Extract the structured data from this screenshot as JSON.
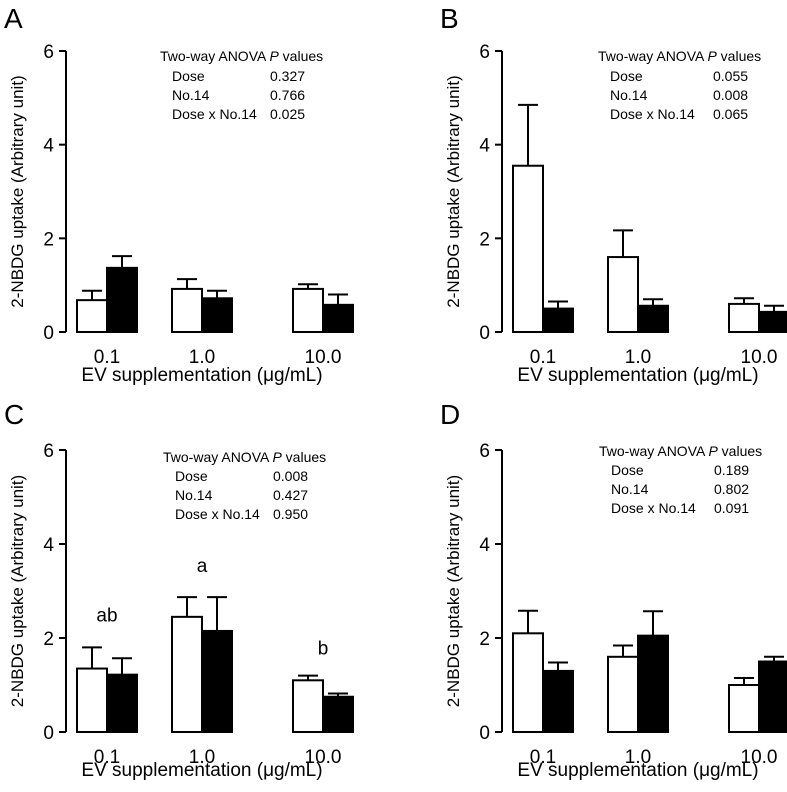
{
  "chart_data": [
    {
      "panel_label": "A",
      "type": "bar",
      "categories": [
        "0.1",
        "1.0",
        "10.0"
      ],
      "series": [
        {
          "name": "open",
          "fill": "#ffffff",
          "values": [
            0.68,
            0.92,
            0.92
          ],
          "errors": [
            0.2,
            0.21,
            0.1
          ]
        },
        {
          "name": "filled",
          "fill": "#000000",
          "values": [
            1.37,
            0.72,
            0.58
          ],
          "errors": [
            0.25,
            0.16,
            0.22
          ]
        }
      ],
      "ylim": [
        0,
        6
      ],
      "yticks": [
        0,
        2,
        4,
        6
      ],
      "ylabel": "2-NBDG uptake (Arbitrary unit)",
      "xlabel": "EV supplementation (μg/mL)",
      "anova": {
        "title": "Two-way ANOVA",
        "title_italic": "P",
        "title_suffix": "values",
        "rows": [
          {
            "label": "Dose",
            "value": "0.327"
          },
          {
            "label": "No.14",
            "value": "0.766"
          },
          {
            "label": "Dose x No.14",
            "value": "0.025"
          }
        ]
      },
      "letters": []
    },
    {
      "panel_label": "B",
      "type": "bar",
      "categories": [
        "0.1",
        "1.0",
        "10.0"
      ],
      "series": [
        {
          "name": "open",
          "fill": "#ffffff",
          "values": [
            3.55,
            1.6,
            0.6
          ],
          "errors": [
            1.3,
            0.57,
            0.12
          ]
        },
        {
          "name": "filled",
          "fill": "#000000",
          "values": [
            0.5,
            0.56,
            0.43
          ],
          "errors": [
            0.15,
            0.14,
            0.13
          ]
        }
      ],
      "ylim": [
        0,
        6
      ],
      "yticks": [
        0,
        2,
        4,
        6
      ],
      "ylabel": "2-NBDG uptake (Arbitrary unit)",
      "xlabel": "EV supplementation (μg/mL)",
      "anova": {
        "title": "Two-way ANOVA",
        "title_italic": "P",
        "title_suffix": "values",
        "rows": [
          {
            "label": "Dose",
            "value": "0.055"
          },
          {
            "label": "No.14",
            "value": "0.008"
          },
          {
            "label": "Dose x No.14",
            "value": "0.065"
          }
        ]
      },
      "letters": []
    },
    {
      "panel_label": "C",
      "type": "bar",
      "categories": [
        "0.1",
        "1.0",
        "10.0"
      ],
      "series": [
        {
          "name": "open",
          "fill": "#ffffff",
          "values": [
            1.35,
            2.45,
            1.1
          ],
          "errors": [
            0.45,
            0.42,
            0.1
          ]
        },
        {
          "name": "filled",
          "fill": "#000000",
          "values": [
            1.22,
            2.15,
            0.75
          ],
          "errors": [
            0.35,
            0.72,
            0.07
          ]
        }
      ],
      "ylim": [
        0,
        6
      ],
      "yticks": [
        0,
        2,
        4,
        6
      ],
      "ylabel": "2-NBDG uptake (Arbitrary unit)",
      "xlabel": "EV supplementation (μg/mL)",
      "anova": {
        "title": "Two-way ANOVA",
        "title_italic": "P",
        "title_suffix": "values",
        "rows": [
          {
            "label": "Dose",
            "value": "0.008"
          },
          {
            "label": "No.14",
            "value": "0.427"
          },
          {
            "label": "Dose x No.14",
            "value": "0.950"
          }
        ]
      },
      "letters": [
        {
          "category": 0,
          "text": "ab",
          "y": 2.35
        },
        {
          "category": 1,
          "text": "a",
          "y": 3.4
        },
        {
          "category": 2,
          "text": "b",
          "y": 1.65
        }
      ]
    },
    {
      "panel_label": "D",
      "type": "bar",
      "categories": [
        "0.1",
        "1.0",
        "10.0"
      ],
      "series": [
        {
          "name": "open",
          "fill": "#ffffff",
          "values": [
            2.1,
            1.6,
            1.0
          ],
          "errors": [
            0.48,
            0.24,
            0.15
          ]
        },
        {
          "name": "filled",
          "fill": "#000000",
          "values": [
            1.3,
            2.05,
            1.5
          ],
          "errors": [
            0.18,
            0.52,
            0.1
          ]
        }
      ],
      "ylim": [
        0,
        6
      ],
      "yticks": [
        0,
        2,
        4,
        6
      ],
      "ylabel": "2-NBDG uptake (Arbitrary unit)",
      "xlabel": "EV supplementation (μg/mL)",
      "anova": {
        "title": "Two-way ANOVA",
        "title_italic": "P",
        "title_suffix": "values",
        "rows": [
          {
            "label": "Dose",
            "value": "0.189"
          },
          {
            "label": "No.14",
            "value": "0.802"
          },
          {
            "label": "Dose x No.14",
            "value": "0.091"
          }
        ]
      },
      "letters": []
    }
  ]
}
